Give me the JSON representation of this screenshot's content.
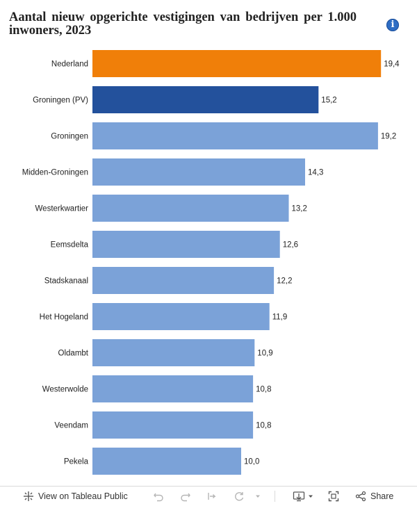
{
  "title": "Aantal nieuw opgerichte vestigingen van bedrijven per 1.000 inwoners, 2023",
  "colors": {
    "highlight": "#f07f09",
    "province": "#23519c",
    "municipality": "#7ba2d8"
  },
  "chart_data": {
    "type": "bar",
    "orientation": "horizontal",
    "title": "Aantal nieuw opgerichte vestigingen van bedrijven per 1.000 inwoners, 2023",
    "categories": [
      "Nederland",
      "Groningen (PV)",
      "Groningen",
      "Midden-Groningen",
      "Westerkwartier",
      "Eemsdelta",
      "Stadskanaal",
      "Het Hogeland",
      "Oldambt",
      "Westerwolde",
      "Veendam",
      "Pekela"
    ],
    "values": [
      19.4,
      15.2,
      19.2,
      14.3,
      13.2,
      12.6,
      12.2,
      11.9,
      10.9,
      10.8,
      10.8,
      10.0
    ],
    "labels": [
      "19,4",
      "15,2",
      "19,2",
      "14,3",
      "13,2",
      "12,6",
      "12,2",
      "11,9",
      "10,9",
      "10,8",
      "10,8",
      "10,0"
    ],
    "bar_colors": [
      "#f07f09",
      "#23519c",
      "#7ba2d8",
      "#7ba2d8",
      "#7ba2d8",
      "#7ba2d8",
      "#7ba2d8",
      "#7ba2d8",
      "#7ba2d8",
      "#7ba2d8",
      "#7ba2d8",
      "#7ba2d8"
    ],
    "xlim": [
      0,
      21.4
    ],
    "xlabel": "",
    "ylabel": "",
    "grid": false
  },
  "toolbar": {
    "view_label": "View on Tableau Public",
    "share_label": "Share"
  }
}
